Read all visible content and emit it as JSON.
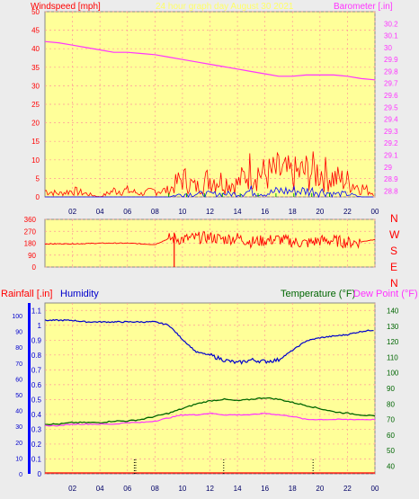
{
  "header": {
    "windspeed_label": "Windspeed [mph]",
    "title": "24 hour graph day   August 30 2021",
    "barometer_label": "Barometer [.in]"
  },
  "compass": [
    "N",
    "W",
    "S",
    "E",
    "N"
  ],
  "bottom_header": {
    "rain_label": "Rainfall [.in]",
    "humidity_label": "Humidity",
    "temp_label": "Temperature (°F)",
    "dew_label": "Dew Point (°F)"
  },
  "colors": {
    "background": "#FFFF99",
    "grid": "#FF9999",
    "wind": "#FF0000",
    "gust": "#0000FF",
    "wind_green": "#00AA00",
    "barometer": "#FF33FF",
    "direction": "#FF0000",
    "rain": "#0000FF",
    "humidity": "#0000CC",
    "temperature": "#006600",
    "dewpoint": "#FF33FF",
    "rain_ticks": "#000000"
  },
  "chart_data": [
    {
      "type": "line",
      "xlabel": "",
      "x_ticks": [
        "02",
        "04",
        "06",
        "08",
        "10",
        "12",
        "14",
        "16",
        "18",
        "20",
        "22",
        "00"
      ],
      "y_left_ticks": [
        "0",
        "5",
        "10",
        "15",
        "20",
        "25",
        "30",
        "35",
        "40",
        "45",
        "50"
      ],
      "y_left_range": [
        0,
        50
      ],
      "y_right_ticks": [
        "28.8",
        "28.9",
        "29",
        "29.1",
        "29.2",
        "29.3",
        "29.4",
        "29.5",
        "29.6",
        "29.7",
        "29.8",
        "29.9",
        "30",
        "30.1",
        "30.2"
      ],
      "y_right_range": [
        28.75,
        30.3
      ],
      "grid": true,
      "series": [
        {
          "axis": "right",
          "x": [
            0,
            1,
            2,
            3,
            4,
            5,
            6,
            7,
            8,
            9,
            10,
            11,
            12,
            13,
            14,
            15,
            16,
            17,
            18,
            19,
            20,
            21,
            22,
            23,
            24
          ],
          "values": [
            30.05,
            30.04,
            30.02,
            30.0,
            29.98,
            29.96,
            29.96,
            29.95,
            29.94,
            29.92,
            29.9,
            29.88,
            29.86,
            29.84,
            29.82,
            29.8,
            29.78,
            29.76,
            29.76,
            29.77,
            29.77,
            29.77,
            29.76,
            29.74,
            29.73
          ]
        },
        {
          "axis": "left",
          "x": [
            0,
            1,
            2,
            3,
            4,
            5,
            6,
            7,
            8,
            9,
            10,
            11,
            12,
            13,
            14,
            15,
            16,
            17,
            18,
            19,
            20,
            21,
            22,
            23,
            24
          ],
          "values": [
            2,
            1,
            2,
            1,
            0,
            2,
            2,
            1,
            2,
            2,
            6,
            3,
            6,
            5,
            4,
            9,
            7,
            8,
            7,
            8,
            8,
            6,
            5,
            3,
            1
          ]
        },
        {
          "axis": "left",
          "x": [
            0,
            1,
            2,
            3,
            4,
            5,
            6,
            7,
            8,
            9,
            10,
            11,
            12,
            13,
            14,
            15,
            16,
            17,
            18,
            19,
            20,
            21,
            22,
            23,
            24
          ],
          "values": [
            0,
            0,
            0,
            0,
            0,
            0,
            0,
            0,
            0,
            0,
            1,
            1,
            1,
            1,
            1,
            2,
            1,
            2,
            2,
            2,
            2,
            1,
            1,
            0,
            0
          ]
        }
      ]
    },
    {
      "type": "line",
      "y_ticks": [
        "0",
        "90",
        "180",
        "270",
        "360"
      ],
      "y_range": [
        0,
        360
      ],
      "x": [
        0,
        1,
        2,
        3,
        4,
        5,
        6,
        7,
        8,
        9,
        10,
        11,
        12,
        13,
        14,
        15,
        16,
        17,
        18,
        19,
        20,
        21,
        22,
        23,
        24
      ],
      "values": [
        175,
        175,
        175,
        177,
        180,
        180,
        180,
        175,
        170,
        215,
        210,
        220,
        225,
        210,
        220,
        190,
        200,
        210,
        190,
        180,
        200,
        200,
        185,
        190,
        210
      ]
    },
    {
      "type": "line",
      "x_ticks": [
        "02",
        "04",
        "06",
        "08",
        "10",
        "12",
        "14",
        "16",
        "18",
        "20",
        "22",
        "00"
      ],
      "y_left_ticks": [
        "0",
        "0.1",
        "0.2",
        "0.3",
        "0.4",
        "0.5",
        "0.6",
        "0.7",
        "0.8",
        "0.9",
        "1",
        "1.1"
      ],
      "y_left_range": [
        0,
        1.15
      ],
      "y_humidity_ticks": [
        "0",
        "10",
        "20",
        "30",
        "40",
        "50",
        "60",
        "70",
        "80",
        "90",
        "100"
      ],
      "y_right_ticks": [
        "40",
        "50",
        "60",
        "70",
        "80",
        "90",
        "100",
        "110",
        "120",
        "130",
        "140"
      ],
      "y_right_range": [
        35,
        145
      ],
      "grid": true,
      "series": [
        {
          "axis": "humidity",
          "x": [
            0,
            1,
            2,
            3,
            4,
            5,
            6,
            7,
            8,
            9,
            10,
            11,
            12,
            13,
            14,
            15,
            16,
            17,
            18,
            19,
            20,
            21,
            22,
            23,
            24
          ],
          "values": [
            97,
            97,
            97,
            96,
            96,
            96,
            96,
            96,
            96,
            94,
            85,
            77,
            75,
            72,
            70,
            72,
            71,
            72,
            78,
            84,
            86,
            87,
            88,
            90,
            91
          ]
        },
        {
          "axis": "right",
          "x": [
            0,
            1,
            2,
            3,
            4,
            5,
            6,
            7,
            8,
            9,
            10,
            11,
            12,
            13,
            14,
            15,
            16,
            17,
            18,
            19,
            20,
            21,
            22,
            23,
            24
          ],
          "values": [
            67,
            67,
            68,
            68,
            68,
            69,
            69,
            70,
            72,
            74,
            77,
            80,
            82,
            83,
            82,
            83,
            84,
            83,
            81,
            79,
            77,
            75,
            74,
            73,
            72
          ]
        },
        {
          "axis": "right",
          "x": [
            0,
            1,
            2,
            3,
            4,
            5,
            6,
            7,
            8,
            9,
            10,
            11,
            12,
            13,
            14,
            15,
            16,
            17,
            18,
            19,
            20,
            21,
            22,
            23,
            24
          ],
          "values": [
            66,
            66,
            67,
            67,
            67,
            67,
            68,
            68,
            69,
            71,
            73,
            73,
            74,
            73,
            73,
            73,
            74,
            73,
            72,
            70,
            70,
            70,
            70,
            70,
            70
          ]
        },
        {
          "axis": "left",
          "x": [
            6.5,
            6.6,
            13,
            19.5
          ],
          "values": [
            0.02,
            0.02,
            0.01,
            0.02
          ]
        }
      ]
    }
  ]
}
